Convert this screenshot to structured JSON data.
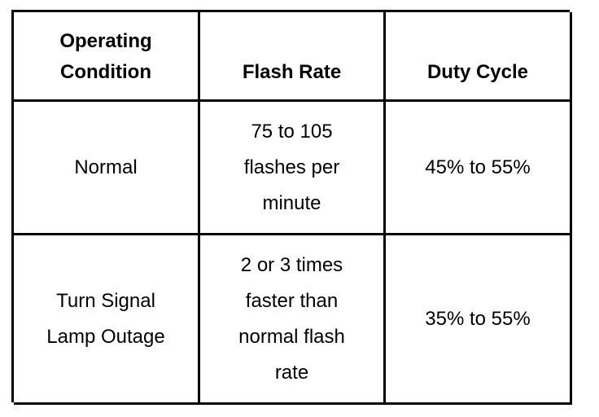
{
  "table": {
    "headers": [
      {
        "line1": "Operating",
        "line2": "Condition"
      },
      {
        "line1": "",
        "line2": "Flash Rate"
      },
      {
        "line1": "",
        "line2": "Duty Cycle"
      }
    ],
    "rows": [
      {
        "condition": [
          "Normal"
        ],
        "flash_rate": [
          "75 to 105",
          "flashes per",
          "minute"
        ],
        "duty_cycle": [
          "45% to 55%"
        ]
      },
      {
        "condition": [
          "Turn Signal",
          "Lamp Outage"
        ],
        "flash_rate": [
          "2 or 3 times",
          "faster than",
          "normal flash",
          "rate"
        ],
        "duty_cycle": [
          "35% to 55%"
        ]
      }
    ]
  }
}
